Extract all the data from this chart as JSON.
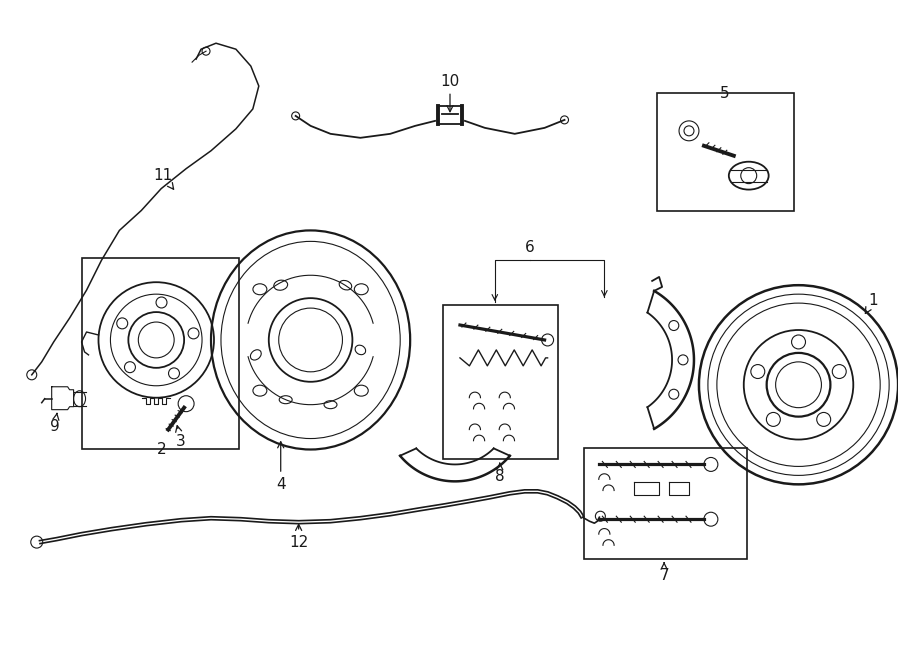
{
  "background_color": "#ffffff",
  "line_color": "#1a1a1a",
  "fig_w": 9.0,
  "fig_h": 6.61,
  "dpi": 100
}
